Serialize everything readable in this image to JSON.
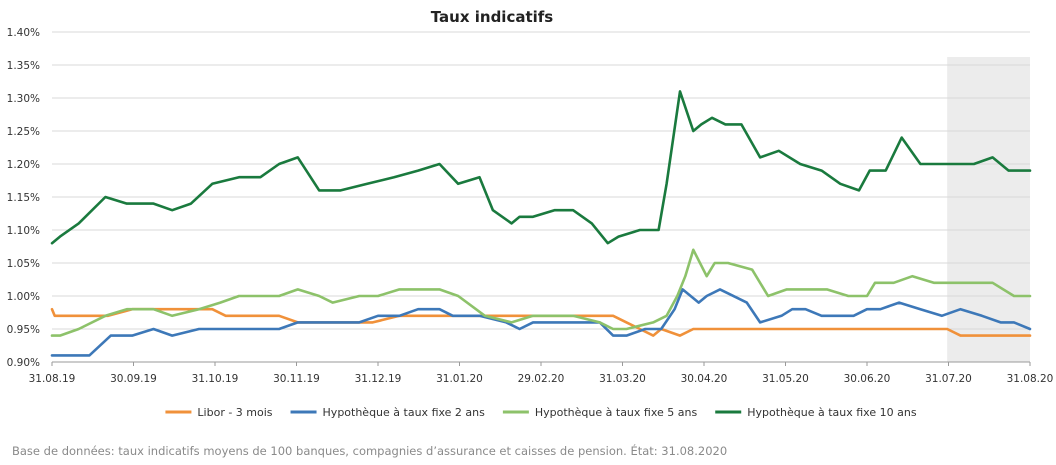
{
  "chart_data": {
    "type": "line",
    "title": "Taux indicatifs",
    "source": "Base de données: taux indicatifs moyens de 100 banques, compagnies d’assurance et caisses de pension. État: 31.08.2020",
    "y_ticks": [
      "0.90%",
      "0.95%",
      "1.00%",
      "1.05%",
      "1.10%",
      "1.15%",
      "1.20%",
      "1.25%",
      "1.30%",
      "1.35%",
      "1.40%"
    ],
    "ylim": [
      0.9,
      1.4
    ],
    "x_ticks": [
      "31.08.19",
      "30.09.19",
      "31.10.19",
      "30.11.19",
      "31.12.19",
      "31.01.20",
      "29.02.20",
      "31.03.20",
      "30.04.20",
      "31.05.20",
      "30.06.20",
      "31.07.20",
      "31.08.20"
    ],
    "x_range_days": [
      0,
      366
    ],
    "shaded_region_days": [
      335,
      366
    ],
    "grid": true,
    "legend_position": "bottom",
    "series": [
      {
        "name": "Libor - 3 mois",
        "color": "#f0913a",
        "points": [
          [
            0,
            0.98
          ],
          [
            1,
            0.97
          ],
          [
            7,
            0.97
          ],
          [
            14,
            0.97
          ],
          [
            21,
            0.97
          ],
          [
            30,
            0.98
          ],
          [
            40,
            0.98
          ],
          [
            50,
            0.98
          ],
          [
            60,
            0.98
          ],
          [
            65,
            0.97
          ],
          [
            75,
            0.97
          ],
          [
            85,
            0.97
          ],
          [
            92,
            0.96
          ],
          [
            100,
            0.96
          ],
          [
            110,
            0.96
          ],
          [
            120,
            0.96
          ],
          [
            130,
            0.97
          ],
          [
            140,
            0.97
          ],
          [
            150,
            0.97
          ],
          [
            155,
            0.97
          ],
          [
            160,
            0.97
          ],
          [
            170,
            0.97
          ],
          [
            180,
            0.97
          ],
          [
            190,
            0.97
          ],
          [
            200,
            0.97
          ],
          [
            210,
            0.97
          ],
          [
            215,
            0.96
          ],
          [
            220,
            0.95
          ],
          [
            225,
            0.94
          ],
          [
            228,
            0.95
          ],
          [
            235,
            0.94
          ],
          [
            240,
            0.95
          ],
          [
            250,
            0.95
          ],
          [
            270,
            0.95
          ],
          [
            290,
            0.95
          ],
          [
            310,
            0.95
          ],
          [
            330,
            0.95
          ],
          [
            335,
            0.95
          ],
          [
            340,
            0.94
          ],
          [
            350,
            0.94
          ],
          [
            366,
            0.94
          ]
        ]
      },
      {
        "name": "Hypothèque à taux fixe 2 ans",
        "color": "#3d78b8",
        "points": [
          [
            0,
            0.91
          ],
          [
            7,
            0.91
          ],
          [
            14,
            0.91
          ],
          [
            22,
            0.94
          ],
          [
            30,
            0.94
          ],
          [
            38,
            0.95
          ],
          [
            45,
            0.94
          ],
          [
            55,
            0.95
          ],
          [
            70,
            0.95
          ],
          [
            80,
            0.95
          ],
          [
            85,
            0.95
          ],
          [
            92,
            0.96
          ],
          [
            105,
            0.96
          ],
          [
            115,
            0.96
          ],
          [
            122,
            0.97
          ],
          [
            130,
            0.97
          ],
          [
            137,
            0.98
          ],
          [
            145,
            0.98
          ],
          [
            150,
            0.97
          ],
          [
            160,
            0.97
          ],
          [
            170,
            0.96
          ],
          [
            175,
            0.95
          ],
          [
            180,
            0.96
          ],
          [
            195,
            0.96
          ],
          [
            205,
            0.96
          ],
          [
            210,
            0.94
          ],
          [
            215,
            0.94
          ],
          [
            222,
            0.95
          ],
          [
            228,
            0.95
          ],
          [
            233,
            0.98
          ],
          [
            236,
            1.01
          ],
          [
            242,
            0.99
          ],
          [
            245,
            1.0
          ],
          [
            250,
            1.01
          ],
          [
            260,
            0.99
          ],
          [
            265,
            0.96
          ],
          [
            273,
            0.97
          ],
          [
            277,
            0.98
          ],
          [
            282,
            0.98
          ],
          [
            288,
            0.97
          ],
          [
            300,
            0.97
          ],
          [
            305,
            0.98
          ],
          [
            310,
            0.98
          ],
          [
            317,
            0.99
          ],
          [
            325,
            0.98
          ],
          [
            333,
            0.97
          ],
          [
            340,
            0.98
          ],
          [
            348,
            0.97
          ],
          [
            355,
            0.96
          ],
          [
            360,
            0.96
          ],
          [
            366,
            0.95
          ]
        ]
      },
      {
        "name": "Hypothèque à taux fixe 5 ans",
        "color": "#8dc26a",
        "points": [
          [
            0,
            0.94
          ],
          [
            3,
            0.94
          ],
          [
            10,
            0.95
          ],
          [
            20,
            0.97
          ],
          [
            28,
            0.98
          ],
          [
            38,
            0.98
          ],
          [
            45,
            0.97
          ],
          [
            55,
            0.98
          ],
          [
            63,
            0.99
          ],
          [
            70,
            1.0
          ],
          [
            85,
            1.0
          ],
          [
            92,
            1.01
          ],
          [
            100,
            1.0
          ],
          [
            105,
            0.99
          ],
          [
            115,
            1.0
          ],
          [
            122,
            1.0
          ],
          [
            130,
            1.01
          ],
          [
            140,
            1.01
          ],
          [
            145,
            1.01
          ],
          [
            152,
            1.0
          ],
          [
            162,
            0.97
          ],
          [
            172,
            0.96
          ],
          [
            180,
            0.97
          ],
          [
            195,
            0.97
          ],
          [
            205,
            0.96
          ],
          [
            210,
            0.95
          ],
          [
            215,
            0.95
          ],
          [
            225,
            0.96
          ],
          [
            230,
            0.97
          ],
          [
            234,
            1.0
          ],
          [
            237,
            1.03
          ],
          [
            240,
            1.07
          ],
          [
            245,
            1.03
          ],
          [
            248,
            1.05
          ],
          [
            253,
            1.05
          ],
          [
            262,
            1.04
          ],
          [
            268,
            1.0
          ],
          [
            275,
            1.01
          ],
          [
            290,
            1.01
          ],
          [
            298,
            1.0
          ],
          [
            305,
            1.0
          ],
          [
            308,
            1.02
          ],
          [
            315,
            1.02
          ],
          [
            322,
            1.03
          ],
          [
            330,
            1.02
          ],
          [
            345,
            1.02
          ],
          [
            352,
            1.02
          ],
          [
            360,
            1.0
          ],
          [
            366,
            1.0
          ]
        ]
      },
      {
        "name": "Hypothèque à taux fixe 10 ans",
        "color": "#1a7a3e",
        "points": [
          [
            0,
            1.08
          ],
          [
            3,
            1.09
          ],
          [
            10,
            1.11
          ],
          [
            20,
            1.15
          ],
          [
            28,
            1.14
          ],
          [
            38,
            1.14
          ],
          [
            45,
            1.13
          ],
          [
            52,
            1.14
          ],
          [
            60,
            1.17
          ],
          [
            70,
            1.18
          ],
          [
            78,
            1.18
          ],
          [
            85,
            1.2
          ],
          [
            92,
            1.21
          ],
          [
            100,
            1.16
          ],
          [
            108,
            1.16
          ],
          [
            118,
            1.17
          ],
          [
            128,
            1.18
          ],
          [
            137,
            1.19
          ],
          [
            145,
            1.2
          ],
          [
            152,
            1.17
          ],
          [
            160,
            1.18
          ],
          [
            165,
            1.13
          ],
          [
            172,
            1.11
          ],
          [
            175,
            1.12
          ],
          [
            180,
            1.12
          ],
          [
            188,
            1.13
          ],
          [
            195,
            1.13
          ],
          [
            202,
            1.11
          ],
          [
            208,
            1.08
          ],
          [
            212,
            1.09
          ],
          [
            220,
            1.1
          ],
          [
            227,
            1.1
          ],
          [
            230,
            1.17
          ],
          [
            235,
            1.31
          ],
          [
            240,
            1.25
          ],
          [
            243,
            1.26
          ],
          [
            247,
            1.27
          ],
          [
            252,
            1.26
          ],
          [
            258,
            1.26
          ],
          [
            265,
            1.21
          ],
          [
            272,
            1.22
          ],
          [
            280,
            1.2
          ],
          [
            288,
            1.19
          ],
          [
            295,
            1.17
          ],
          [
            302,
            1.16
          ],
          [
            306,
            1.19
          ],
          [
            312,
            1.19
          ],
          [
            318,
            1.24
          ],
          [
            325,
            1.2
          ],
          [
            332,
            1.2
          ],
          [
            338,
            1.2
          ],
          [
            345,
            1.2
          ],
          [
            352,
            1.21
          ],
          [
            358,
            1.19
          ],
          [
            366,
            1.19
          ]
        ]
      }
    ]
  }
}
